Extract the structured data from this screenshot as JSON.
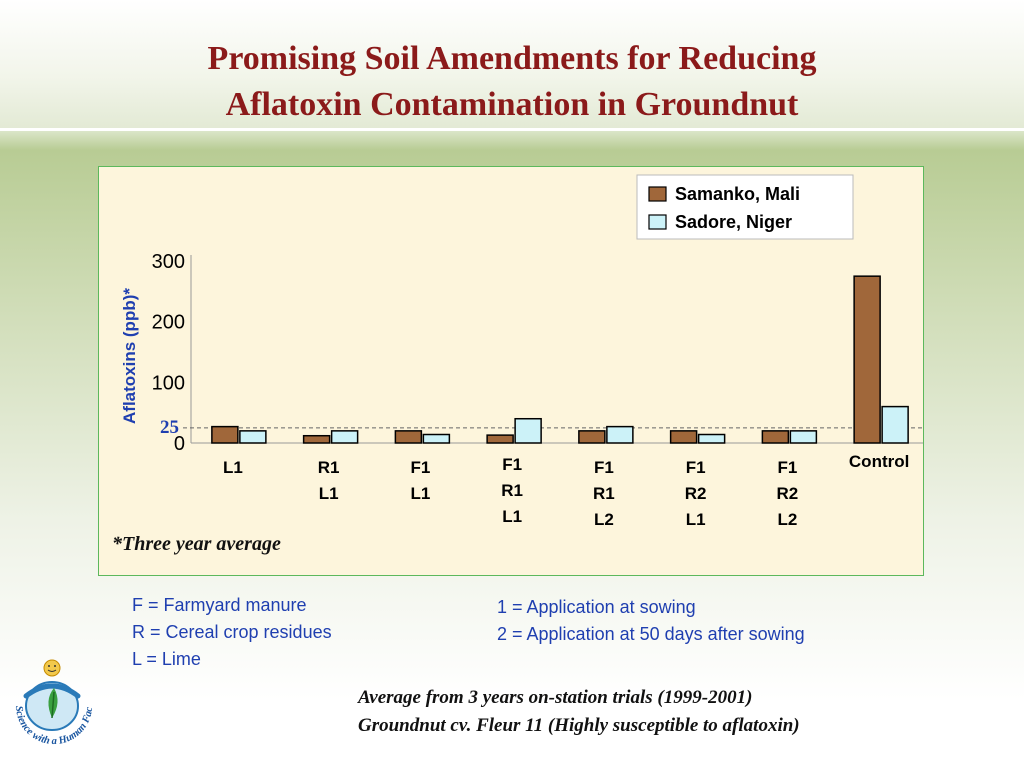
{
  "title": {
    "line1": "Promising Soil Amendments for Reducing",
    "line2": "Aflatoxin Contamination in Groundnut"
  },
  "chart_data": {
    "type": "bar",
    "ylabel": "Aflatoxins (ppb)*",
    "yticks": [
      "0",
      "100",
      "200",
      "300"
    ],
    "ylim": [
      0,
      300
    ],
    "reference_line": {
      "value": 25,
      "label": "25"
    },
    "categories": [
      [
        "L1"
      ],
      [
        "R1",
        "L1"
      ],
      [
        "F1",
        "L1"
      ],
      [
        "F1",
        "R1",
        "L1"
      ],
      [
        "F1",
        "R1",
        "L2"
      ],
      [
        "F1",
        "R2",
        "L1"
      ],
      [
        "F1",
        "R2",
        "L2"
      ],
      [
        "Control"
      ]
    ],
    "series": [
      {
        "name": "Samanko, Mali",
        "color": "#a0673a",
        "values": [
          27,
          12,
          20,
          13,
          20,
          20,
          20,
          275
        ]
      },
      {
        "name": "Sadore, Niger",
        "color": "#ccf2f8",
        "values": [
          20,
          20,
          14,
          40,
          27,
          14,
          20,
          60
        ]
      }
    ],
    "legend_position": "top-right",
    "grid": false,
    "note": "*Three year average"
  },
  "key_left": [
    "F = Farmyard manure",
    "R = Cereal crop residues",
    "L = Lime"
  ],
  "key_right": [
    "1 = Application at sowing",
    "2 = Application at 50 days after sowing"
  ],
  "footer": [
    "Average from 3 years on-station trials (1999-2001)",
    "Groundnut cv. Fleur 11 (Highly susceptible to aflatoxin)"
  ],
  "logo": {
    "text": "Science with a Human Face",
    "icon": "figure-with-leaf-logo"
  }
}
